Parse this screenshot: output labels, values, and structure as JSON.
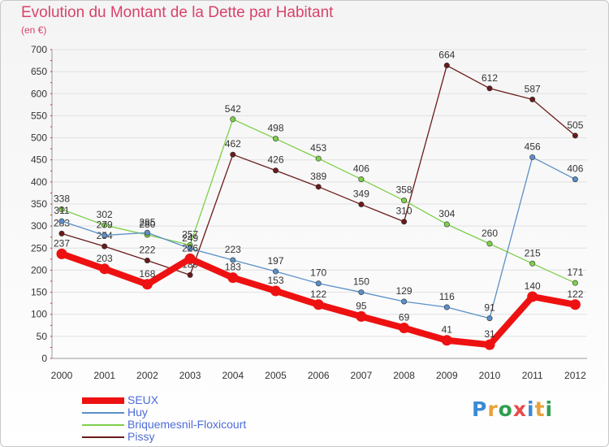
{
  "header": {
    "title": "Evolution du Montant de la Dette par Habitant",
    "subtitle": "(en €)"
  },
  "logo": {
    "text": "Proxiti",
    "letters": [
      "P",
      "r",
      "o",
      "x",
      "i",
      "t",
      "i"
    ],
    "colors": [
      "#3a8ad6",
      "#e8a23a",
      "#2f9e4f",
      "#e84a4a",
      "#3a8ad6",
      "#e8a23a",
      "#2f9e4f"
    ]
  },
  "chart_data": {
    "type": "line",
    "categories": [
      "2000",
      "2001",
      "2002",
      "2003",
      "2004",
      "2005",
      "2006",
      "2007",
      "2008",
      "2009",
      "2010",
      "2011",
      "2012"
    ],
    "y_ticks": [
      "0",
      "50",
      "100",
      "150",
      "200",
      "250",
      "300",
      "350",
      "400",
      "450",
      "500",
      "550",
      "600",
      "650",
      "700"
    ],
    "ylim": [
      0,
      700
    ],
    "grid": true,
    "legend_position": "bottom-left",
    "series": [
      {
        "name": "Pissy",
        "color": "#6a1a1a",
        "values": [
          283,
          254,
          222,
          189,
          462,
          426,
          389,
          349,
          310,
          664,
          612,
          587,
          505
        ]
      },
      {
        "name": "Briquemesnil-Floxicourt",
        "color": "#7ed04b",
        "values": [
          338,
          302,
          280,
          257,
          542,
          498,
          453,
          406,
          358,
          304,
          260,
          215,
          171
        ]
      },
      {
        "name": "Huy",
        "color": "#5b8fc7",
        "values": [
          311,
          279,
          285,
          249,
          223,
          197,
          170,
          150,
          129,
          116,
          91,
          456,
          406
        ]
      },
      {
        "name": "SEUX",
        "color": "#ee1111",
        "values": [
          237,
          203,
          168,
          226,
          183,
          153,
          122,
          95,
          69,
          41,
          31,
          140,
          122
        ]
      }
    ],
    "legend_order": [
      "SEUX",
      "Huy",
      "Briquemesnil-Floxicourt",
      "Pissy"
    ]
  }
}
